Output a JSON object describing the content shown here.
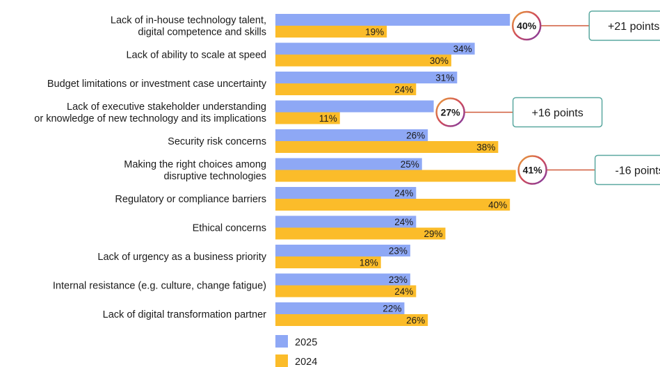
{
  "chart_data": {
    "type": "bar",
    "orientation": "horizontal",
    "title": "",
    "xlabel": "",
    "ylabel": "",
    "xlim": [
      0,
      60
    ],
    "grid": false,
    "legend_position": "bottom-left",
    "value_suffix": "%",
    "categories": [
      [
        "Lack of in-house technology talent,",
        "digital competence and skills"
      ],
      [
        "Lack of ability to scale at speed"
      ],
      [
        "Budget limitations or investment case uncertainty"
      ],
      [
        "Lack of executive stakeholder understanding",
        "or knowledge of new technology and its implications"
      ],
      [
        "Security risk concerns"
      ],
      [
        "Making the right choices among",
        "disruptive technologies"
      ],
      [
        "Regulatory or compliance barriers"
      ],
      [
        "Ethical concerns"
      ],
      [
        "Lack of urgency as a business priority"
      ],
      [
        "Internal resistance (e.g. culture, change fatigue)"
      ],
      [
        "Lack of digital transformation partner"
      ]
    ],
    "series": [
      {
        "name": "2025",
        "color": "#8ea8f5",
        "values": [
          40,
          34,
          31,
          27,
          26,
          25,
          24,
          24,
          23,
          23,
          22
        ]
      },
      {
        "name": "2024",
        "color": "#fbbc2a",
        "values": [
          19,
          30,
          24,
          11,
          38,
          41,
          40,
          29,
          18,
          24,
          26
        ]
      }
    ],
    "highlights": [
      {
        "category_index": 0,
        "series_index": 0,
        "label": "40%",
        "callout": "+21 points"
      },
      {
        "category_index": 3,
        "series_index": 0,
        "label": "27%",
        "callout": "+16 points"
      },
      {
        "category_index": 5,
        "series_index": 1,
        "label": "41%",
        "callout": "-16 points"
      }
    ]
  },
  "colors": {
    "callout_border": "#5aa8a0",
    "connector_line": "#d05a3a",
    "ring_gradient": [
      "#e8a33a",
      "#d04a5a",
      "#7a3aa8"
    ]
  }
}
